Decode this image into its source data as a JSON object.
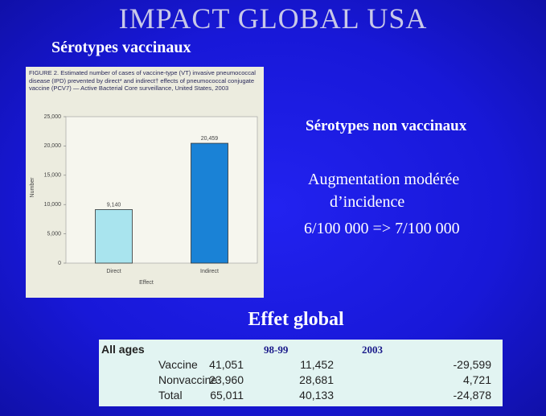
{
  "title": "IMPACT GLOBAL USA",
  "left_heading": "Sérotypes vaccinaux",
  "figure": {
    "caption": "FIGURE 2. Estimated number of cases of vaccine-type (VT) invasive pneumococcal disease (IPD) prevented by direct* and indirect† effects of pneumococcal conjugate vaccine (PCV7) — Active Bacterial Core surveillance, United States, 2003",
    "chart_data": {
      "type": "bar",
      "categories": [
        "Direct",
        "Indirect"
      ],
      "values": [
        9140,
        20459
      ],
      "value_labels": [
        "9,140",
        "20,459"
      ],
      "colors": [
        "#a9e4ee",
        "#1a82d6"
      ],
      "ylim": [
        0,
        25000
      ],
      "yticks": [
        0,
        {
          "value": 5000,
          "label": "5,000"
        },
        {
          "value": 10000,
          "label": "10,000"
        },
        {
          "value": 15000,
          "label": "15,000"
        },
        {
          "value": 20000,
          "label": "20,000"
        },
        {
          "value": 25000,
          "label": "25,000"
        }
      ],
      "xlabel": "Effect",
      "ylabel": "Number"
    }
  },
  "right": {
    "heading": "Sérotypes non vaccinaux",
    "lines": [
      "Augmentation modérée",
      "d’incidence",
      "6/100 000 => 7/100 000"
    ]
  },
  "table": {
    "title": "Effet global",
    "group": "All ages",
    "columns": [
      "98-99",
      "2003"
    ],
    "rows": [
      [
        "Vaccine",
        "41,051",
        "11,452",
        "-29,599"
      ],
      [
        "Nonvaccine",
        "23,960",
        "28,681",
        "4,721"
      ],
      [
        "Total",
        "65,011",
        "40,133",
        "-24,878"
      ]
    ]
  }
}
